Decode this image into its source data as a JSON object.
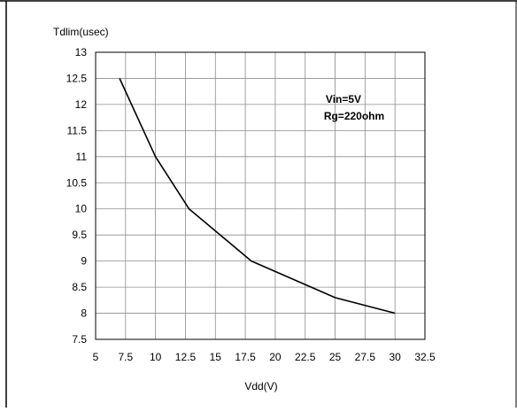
{
  "chart_data": {
    "type": "line",
    "title": "",
    "ylabel": "Tdlim(usec)",
    "xlabel": "Vdd(V)",
    "xlim": [
      5,
      32.5
    ],
    "ylim": [
      7.5,
      13
    ],
    "x_ticks": [
      "5",
      "7.5",
      "10",
      "12.5",
      "15",
      "17.5",
      "20",
      "22.5",
      "25",
      "27.5",
      "30",
      "32.5"
    ],
    "y_ticks": [
      "7.5",
      "8",
      "8.5",
      "9",
      "9.5",
      "10",
      "10.5",
      "11",
      "11.5",
      "12",
      "12.5",
      "13"
    ],
    "grid": true,
    "annotation": [
      "Vin=5V",
      "Rg=220ohm"
    ],
    "series": [
      {
        "x": [
          7,
          10,
          12.8,
          18,
          25,
          30
        ],
        "y": [
          12.5,
          11,
          10,
          9,
          8.3,
          8
        ]
      }
    ]
  }
}
